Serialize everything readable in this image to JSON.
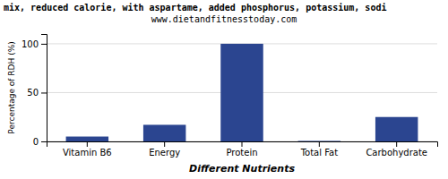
{
  "chart_data": {
    "type": "bar",
    "title": "mix, reduced calorie, with aspartame, added phosphorus, potassium, sodi",
    "subtitle": "www.dietandfitnesstoday.com",
    "categories": [
      "Vitamin B6",
      "Energy",
      "Protein",
      "Total Fat",
      "Carbohydrate"
    ],
    "values": [
      5.0,
      17.0,
      100.0,
      0.5,
      25.0
    ],
    "color": "#2b4590",
    "xlabel": "Different Nutrients",
    "ylabel": "Percentage of RDH (%)",
    "ylim": [
      0,
      110
    ],
    "yticks": [
      0,
      50,
      100
    ],
    "grid": true
  }
}
